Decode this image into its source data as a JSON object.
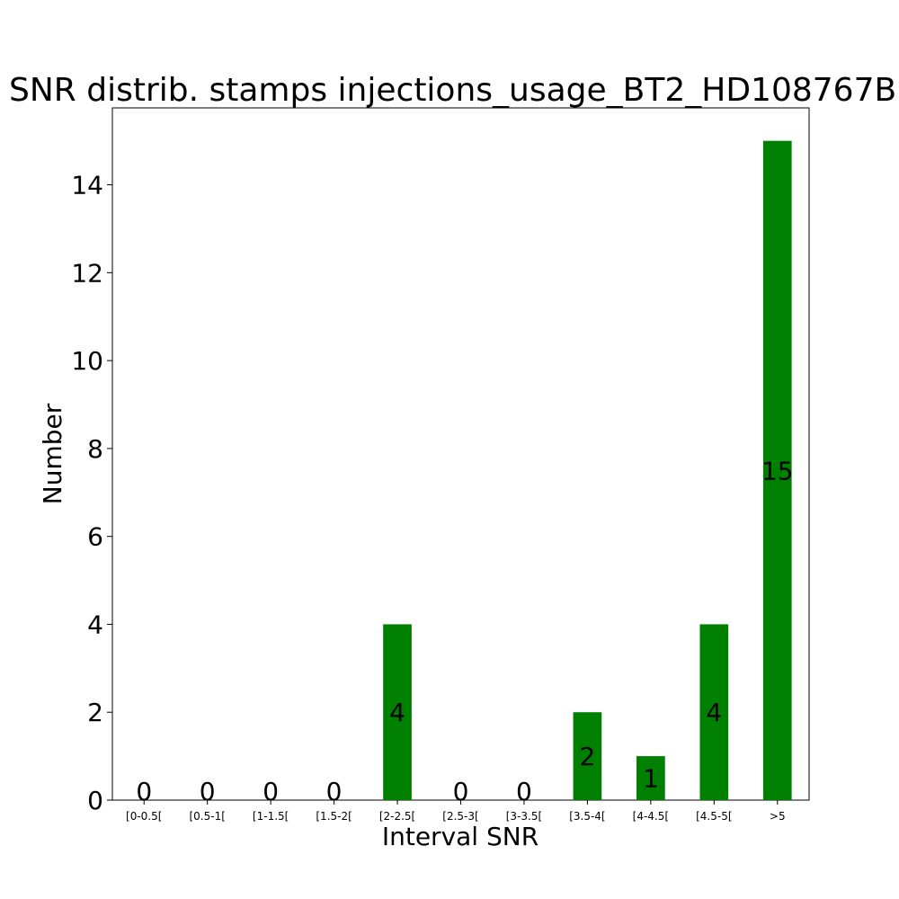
{
  "chart_data": {
    "type": "bar",
    "title": "SNR distrib. stamps injections_usage_BT2_HD108767B",
    "xlabel": "Interval SNR",
    "ylabel": "Number",
    "categories": [
      "[0-0.5[",
      "[0.5-1[",
      "[1-1.5[",
      "[1.5-2[",
      "[2-2.5[",
      "[2.5-3[",
      "[3-3.5[",
      "[3.5-4[",
      "[4-4.5[",
      "[4.5-5[",
      ">5"
    ],
    "values": [
      0,
      0,
      0,
      0,
      4,
      0,
      0,
      2,
      1,
      4,
      15
    ],
    "ylim": [
      0,
      15.75
    ],
    "yticks": [
      0,
      2,
      4,
      6,
      8,
      10,
      12,
      14
    ],
    "bar_color": "#008000",
    "grid": false
  }
}
